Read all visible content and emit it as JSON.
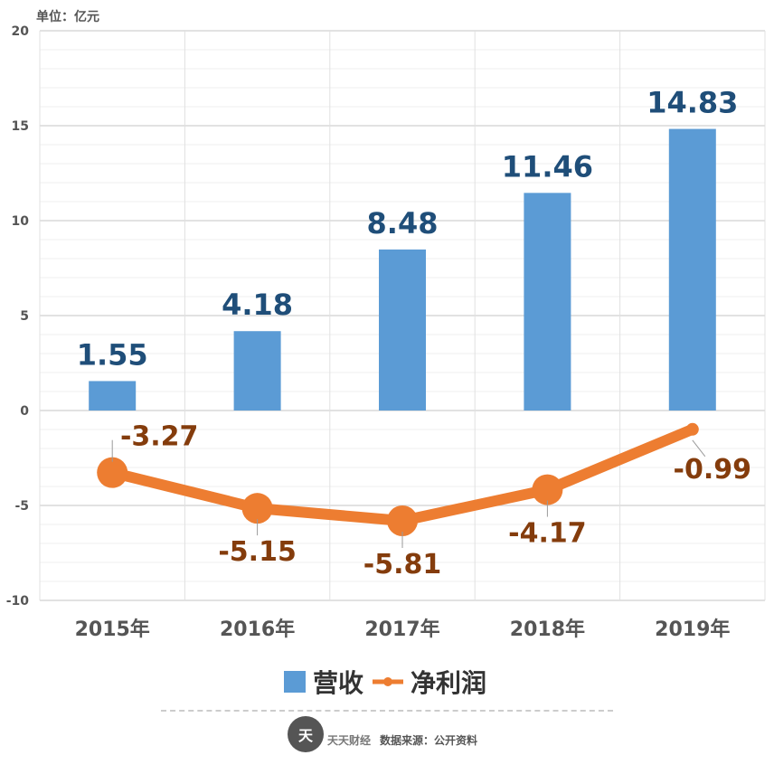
{
  "unit_label": "单位：亿元",
  "footer": {
    "logo_text": "天",
    "brand": "天天财经",
    "source": "数据来源：公开资料"
  },
  "colors": {
    "bar": "#5b9bd5",
    "line": "#ed7d31",
    "bar_label": "#1f4e79",
    "line_label": "#843c0c",
    "grid": "#e5e5e5"
  },
  "chart_data": {
    "type": "bar",
    "categories": [
      "2015年",
      "2016年",
      "2017年",
      "2018年",
      "2019年"
    ],
    "ylim": [
      -10,
      20
    ],
    "yticks": [
      "20",
      "15",
      "10",
      "5",
      "0",
      "-5",
      "-10"
    ],
    "ytick_values": [
      20,
      15,
      10,
      5,
      0,
      -5,
      -10
    ],
    "grid": true,
    "legend_position": "bottom",
    "series": [
      {
        "name": "营收",
        "type": "bar",
        "values": [
          1.55,
          4.18,
          8.48,
          11.46,
          14.83
        ],
        "labels": [
          "1.55",
          "4.18",
          "8.48",
          "11.46",
          "14.83"
        ]
      },
      {
        "name": "净利润",
        "type": "line",
        "values": [
          -3.27,
          -5.15,
          -5.81,
          -4.17,
          -0.99
        ],
        "labels": [
          "-3.27",
          "-5.15",
          "-5.81",
          "-4.17",
          "-0.99"
        ]
      }
    ]
  }
}
